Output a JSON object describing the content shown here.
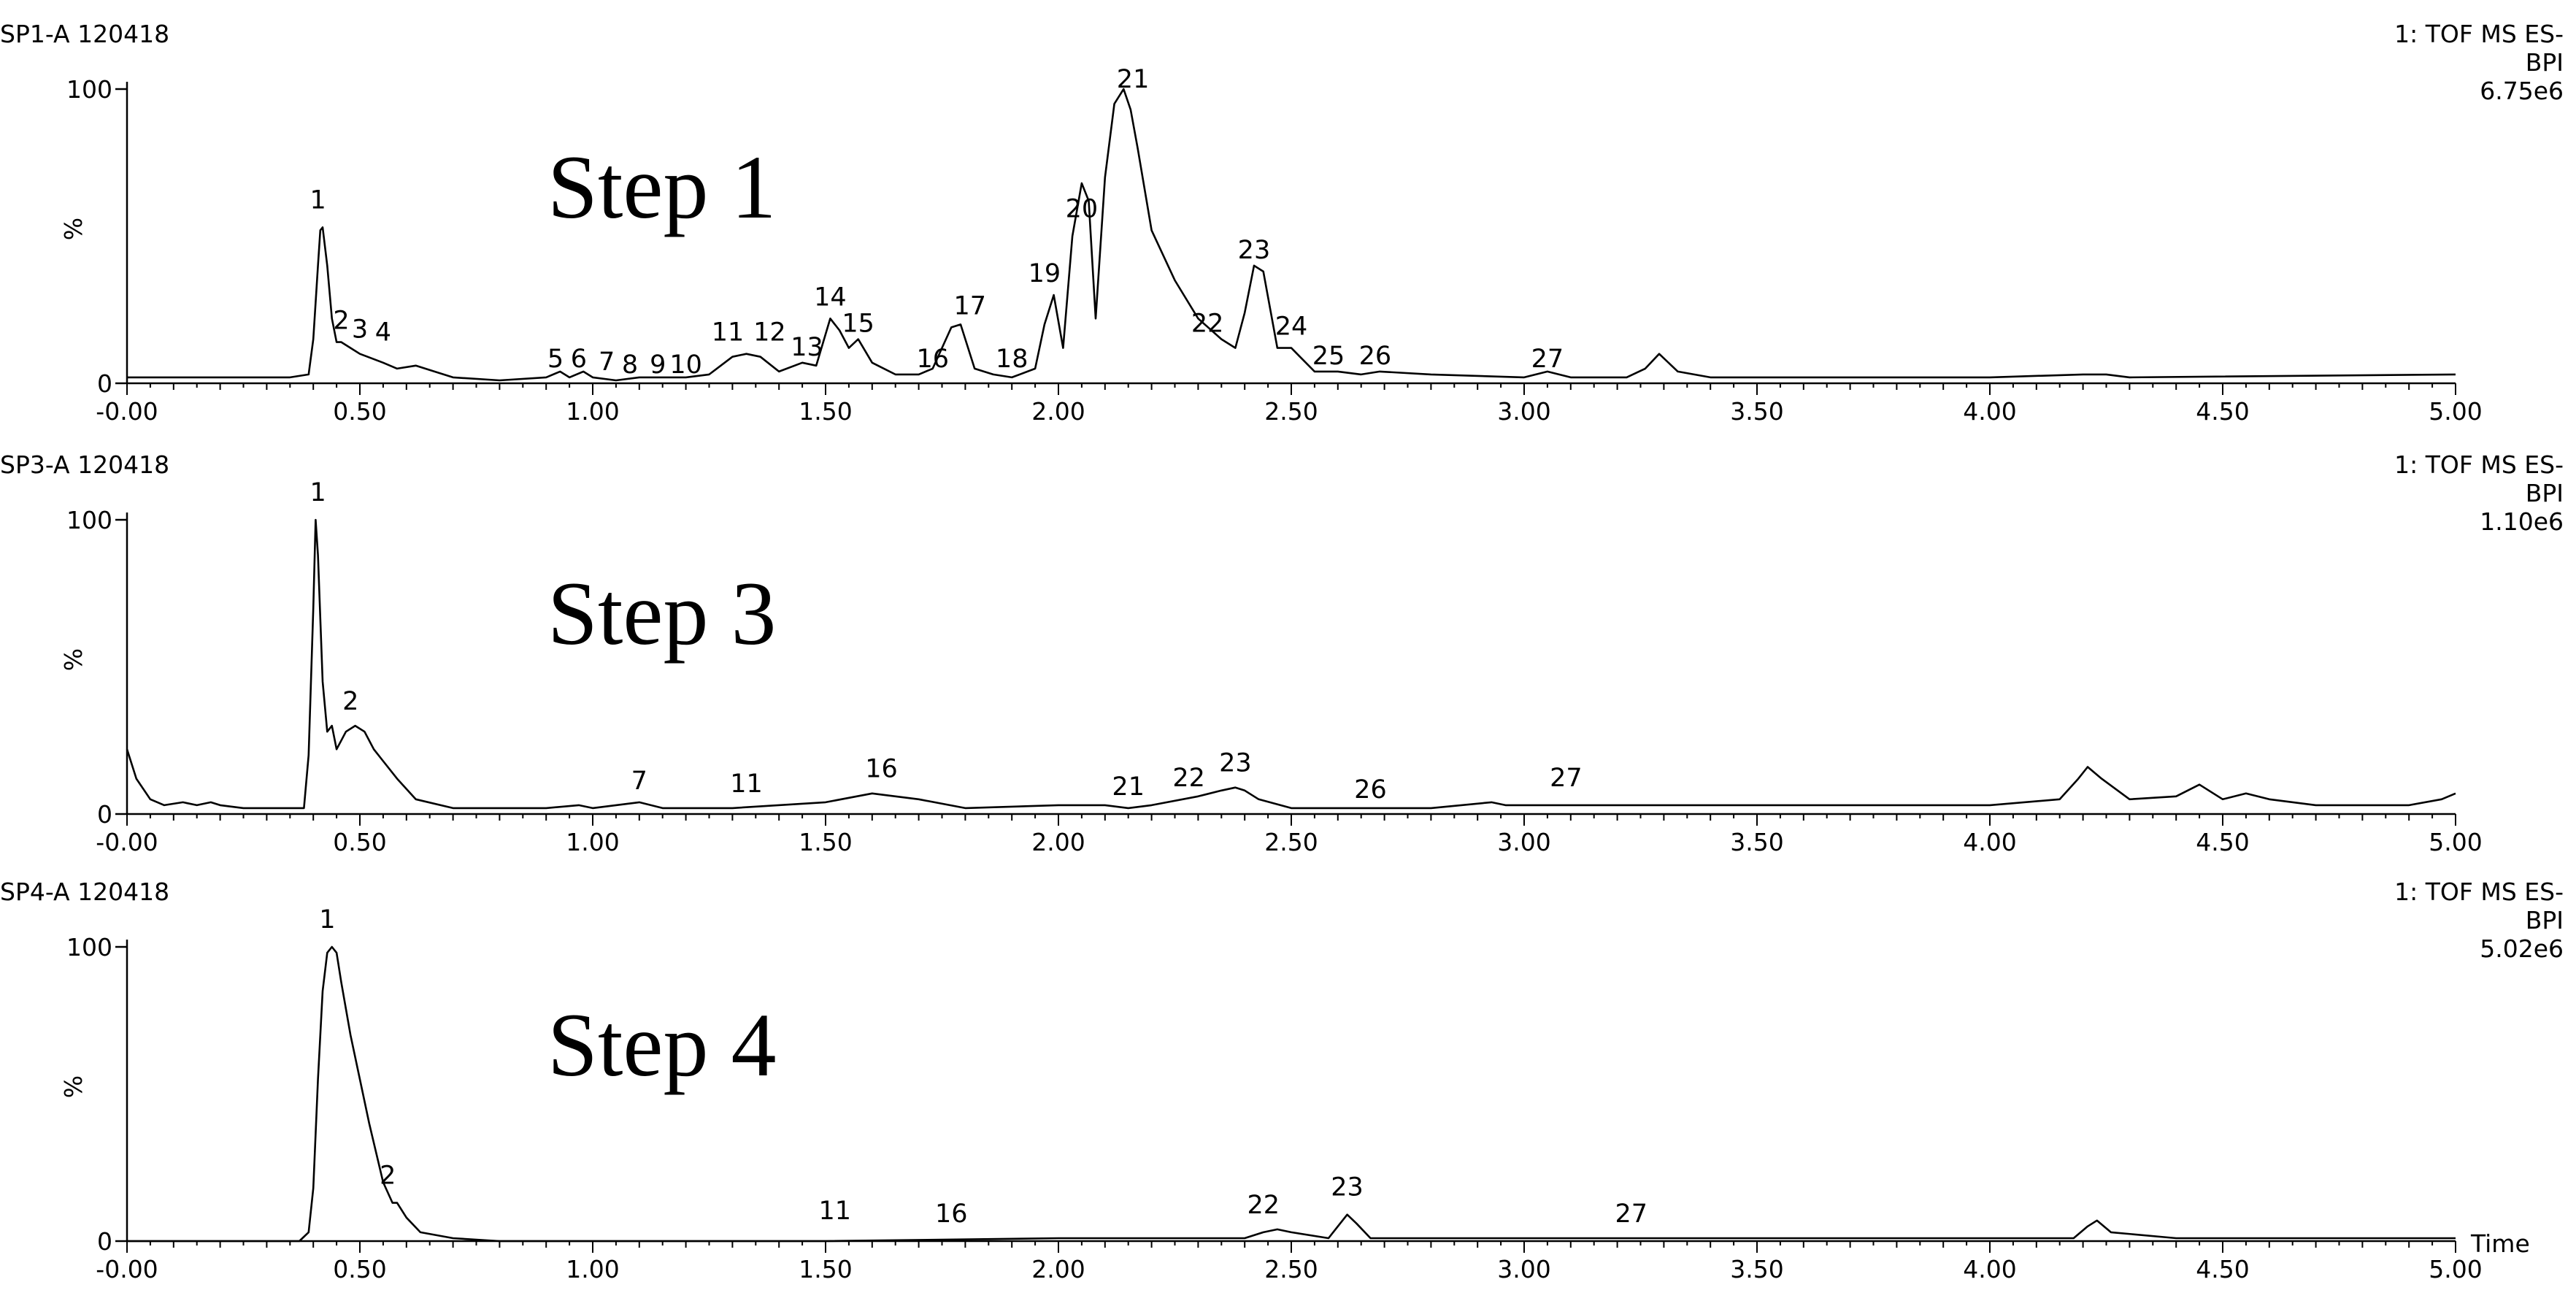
{
  "chart_data": [
    {
      "type": "line",
      "sample": "SP1-A 120418",
      "detector": "1: TOF MS ES-",
      "mode": "BPI",
      "intensity": "6.75e6",
      "step_label": "Step 1",
      "ylabel": "%",
      "yticks": [
        "0",
        "100"
      ],
      "ylim": [
        0,
        100
      ],
      "xlim": [
        0,
        5
      ],
      "xticks": [
        "-0.00",
        "0.50",
        "1.00",
        "1.50",
        "2.00",
        "2.50",
        "3.00",
        "3.50",
        "4.00",
        "4.50",
        "5.00"
      ],
      "xlabel": "",
      "series": [
        {
          "x": [
            0.0,
            0.2,
            0.35,
            0.39,
            0.4,
            0.41,
            0.415,
            0.42,
            0.43,
            0.44,
            0.45,
            0.46,
            0.48,
            0.5,
            0.55,
            0.58,
            0.62,
            0.7,
            0.8,
            0.9,
            0.93,
            0.95,
            0.98,
            1.0,
            1.05,
            1.1,
            1.2,
            1.25,
            1.3,
            1.33,
            1.36,
            1.4,
            1.45,
            1.48,
            1.51,
            1.53,
            1.55,
            1.57,
            1.6,
            1.65,
            1.7,
            1.73,
            1.77,
            1.79,
            1.82,
            1.86,
            1.9,
            1.95,
            1.97,
            1.99,
            2.01,
            2.03,
            2.05,
            2.065,
            2.08,
            2.1,
            2.12,
            2.14,
            2.155,
            2.17,
            2.2,
            2.25,
            2.3,
            2.35,
            2.38,
            2.4,
            2.42,
            2.44,
            2.47,
            2.5,
            2.55,
            2.6,
            2.65,
            2.69,
            2.8,
            3.0,
            3.05,
            3.1,
            3.22,
            3.26,
            3.29,
            3.33,
            3.4,
            4.0,
            4.2,
            4.25,
            4.3,
            5.0
          ],
          "y": [
            2,
            2,
            2,
            3,
            15,
            40,
            52,
            53,
            40,
            22,
            14,
            14,
            12,
            10,
            7,
            5,
            6,
            2,
            1,
            2,
            4,
            2,
            4,
            2,
            1,
            2,
            2,
            3,
            9,
            10,
            9,
            4,
            7,
            6,
            22,
            18,
            12,
            15,
            7,
            3,
            3,
            5,
            19,
            20,
            5,
            3,
            2,
            5,
            20,
            30,
            12,
            50,
            68,
            62,
            22,
            70,
            95,
            100,
            93,
            80,
            52,
            35,
            22,
            15,
            12,
            24,
            40,
            38,
            12,
            12,
            4,
            4,
            3,
            4,
            3,
            2,
            4,
            2,
            2,
            5,
            10,
            4,
            2,
            2,
            3,
            3,
            2,
            3
          ]
        }
      ],
      "peak_labels": [
        {
          "label": "1",
          "x": 0.41,
          "y": 57
        },
        {
          "label": "2",
          "x": 0.46,
          "y": 16
        },
        {
          "label": "3",
          "x": 0.5,
          "y": 13
        },
        {
          "label": "4",
          "x": 0.55,
          "y": 12
        },
        {
          "label": "5",
          "x": 0.92,
          "y": 3
        },
        {
          "label": "6",
          "x": 0.97,
          "y": 3
        },
        {
          "label": "7",
          "x": 1.03,
          "y": 2
        },
        {
          "label": "8",
          "x": 1.08,
          "y": 1
        },
        {
          "label": "9",
          "x": 1.14,
          "y": 1
        },
        {
          "label": "10",
          "x": 1.2,
          "y": 1
        },
        {
          "label": "11",
          "x": 1.29,
          "y": 12
        },
        {
          "label": "12",
          "x": 1.38,
          "y": 12
        },
        {
          "label": "13",
          "x": 1.46,
          "y": 7
        },
        {
          "label": "14",
          "x": 1.51,
          "y": 24
        },
        {
          "label": "15",
          "x": 1.57,
          "y": 15
        },
        {
          "label": "16",
          "x": 1.73,
          "y": 3
        },
        {
          "label": "17",
          "x": 1.81,
          "y": 21
        },
        {
          "label": "18",
          "x": 1.9,
          "y": 3
        },
        {
          "label": "19",
          "x": 1.97,
          "y": 32
        },
        {
          "label": "20",
          "x": 2.05,
          "y": 54
        },
        {
          "label": "21",
          "x": 2.16,
          "y": 98
        },
        {
          "label": "22",
          "x": 2.32,
          "y": 15
        },
        {
          "label": "23",
          "x": 2.42,
          "y": 40
        },
        {
          "label": "24",
          "x": 2.5,
          "y": 14
        },
        {
          "label": "25",
          "x": 2.58,
          "y": 4
        },
        {
          "label": "26",
          "x": 2.68,
          "y": 4
        },
        {
          "label": "27",
          "x": 3.05,
          "y": 3
        }
      ]
    },
    {
      "type": "line",
      "sample": "SP3-A 120418",
      "detector": "1: TOF MS ES-",
      "mode": "BPI",
      "intensity": "1.10e6",
      "step_label": "Step 3",
      "ylabel": "%",
      "yticks": [
        "0",
        "100"
      ],
      "ylim": [
        0,
        100
      ],
      "xlim": [
        0,
        5
      ],
      "xticks": [
        "-0.00",
        "0.50",
        "1.00",
        "1.50",
        "2.00",
        "2.50",
        "3.00",
        "3.50",
        "4.00",
        "4.50",
        "5.00"
      ],
      "xlabel": "",
      "series": [
        {
          "x": [
            0.0,
            0.02,
            0.05,
            0.08,
            0.12,
            0.15,
            0.18,
            0.2,
            0.25,
            0.3,
            0.35,
            0.38,
            0.39,
            0.4,
            0.405,
            0.41,
            0.42,
            0.43,
            0.44,
            0.45,
            0.46,
            0.47,
            0.49,
            0.51,
            0.53,
            0.55,
            0.58,
            0.62,
            0.7,
            0.8,
            0.9,
            0.97,
            1.0,
            1.05,
            1.1,
            1.15,
            1.3,
            1.5,
            1.6,
            1.7,
            1.8,
            2.0,
            2.1,
            2.15,
            2.2,
            2.3,
            2.35,
            2.38,
            2.4,
            2.43,
            2.5,
            2.6,
            2.8,
            2.93,
            2.96,
            3.0,
            3.5,
            4.0,
            4.15,
            4.19,
            4.21,
            4.24,
            4.3,
            4.4,
            4.45,
            4.5,
            4.55,
            4.6,
            4.7,
            4.9,
            4.97,
            5.0
          ],
          "y": [
            22,
            12,
            5,
            3,
            4,
            3,
            4,
            3,
            2,
            2,
            2,
            2,
            20,
            70,
            100,
            88,
            45,
            28,
            30,
            22,
            25,
            28,
            30,
            28,
            22,
            18,
            12,
            5,
            2,
            2,
            2,
            3,
            2,
            3,
            4,
            2,
            2,
            4,
            7,
            5,
            2,
            3,
            3,
            2,
            3,
            6,
            8,
            9,
            8,
            5,
            2,
            2,
            2,
            4,
            3,
            3,
            3,
            3,
            5,
            12,
            16,
            12,
            5,
            6,
            10,
            5,
            7,
            5,
            3,
            3,
            5,
            7
          ]
        }
      ],
      "peak_labels": [
        {
          "label": "1",
          "x": 0.41,
          "y": 104
        },
        {
          "label": "2",
          "x": 0.48,
          "y": 33
        },
        {
          "label": "7",
          "x": 1.1,
          "y": 6
        },
        {
          "label": "11",
          "x": 1.33,
          "y": 5
        },
        {
          "label": "16",
          "x": 1.62,
          "y": 10
        },
        {
          "label": "21",
          "x": 2.15,
          "y": 4
        },
        {
          "label": "22",
          "x": 2.28,
          "y": 7
        },
        {
          "label": "23",
          "x": 2.38,
          "y": 12
        },
        {
          "label": "26",
          "x": 2.67,
          "y": 3
        },
        {
          "label": "27",
          "x": 3.09,
          "y": 7
        }
      ]
    },
    {
      "type": "line",
      "sample": "SP4-A 120418",
      "detector": "1: TOF MS ES-",
      "mode": "BPI",
      "intensity": "5.02e6",
      "step_label": "Step 4",
      "ylabel": "%",
      "yticks": [
        "0",
        "100"
      ],
      "ylim": [
        0,
        100
      ],
      "xlim": [
        0,
        5
      ],
      "xticks": [
        "-0.00",
        "0.50",
        "1.00",
        "1.50",
        "2.00",
        "2.50",
        "3.00",
        "3.50",
        "4.00",
        "4.50",
        "5.00"
      ],
      "xlabel": "Time",
      "series": [
        {
          "x": [
            0.0,
            0.2,
            0.37,
            0.39,
            0.4,
            0.41,
            0.42,
            0.43,
            0.44,
            0.45,
            0.46,
            0.48,
            0.5,
            0.52,
            0.55,
            0.57,
            0.58,
            0.6,
            0.63,
            0.7,
            0.8,
            1.0,
            1.5,
            2.0,
            2.4,
            2.44,
            2.47,
            2.5,
            2.58,
            2.6,
            2.62,
            2.64,
            2.67,
            3.0,
            3.5,
            4.0,
            4.18,
            4.21,
            4.23,
            4.26,
            4.4,
            5.0
          ],
          "y": [
            0,
            0,
            0,
            3,
            18,
            55,
            85,
            98,
            100,
            98,
            88,
            70,
            55,
            40,
            20,
            13,
            13,
            8,
            3,
            1,
            0,
            0,
            0,
            1,
            1,
            3,
            4,
            3,
            1,
            5,
            9,
            6,
            1,
            1,
            1,
            1,
            1,
            5,
            7,
            3,
            1,
            1
          ]
        }
      ],
      "peak_labels": [
        {
          "label": "1",
          "x": 0.43,
          "y": 104
        },
        {
          "label": "2",
          "x": 0.56,
          "y": 17
        },
        {
          "label": "11",
          "x": 1.52,
          "y": 5
        },
        {
          "label": "16",
          "x": 1.77,
          "y": 4
        },
        {
          "label": "22",
          "x": 2.44,
          "y": 7
        },
        {
          "label": "23",
          "x": 2.62,
          "y": 13
        },
        {
          "label": "27",
          "x": 3.23,
          "y": 4
        }
      ]
    }
  ]
}
